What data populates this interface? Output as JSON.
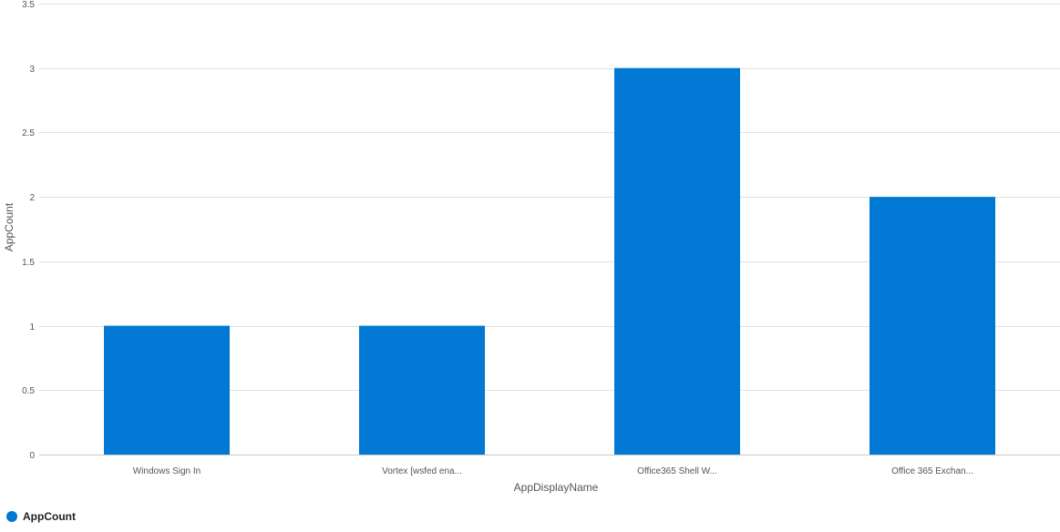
{
  "chart_data": {
    "type": "bar",
    "categories": [
      "Windows Sign In",
      "Vortex [wsfed ena...",
      "Office365 Shell W...",
      "Office 365 Exchan..."
    ],
    "series": [
      {
        "name": "AppCount",
        "values": [
          1,
          1,
          3,
          2
        ]
      }
    ],
    "xlabel": "AppDisplayName",
    "ylabel": "AppCount",
    "ylim": [
      0,
      3.5
    ],
    "yticks": [
      "0",
      "0.5",
      "1",
      "1.5",
      "2",
      "2.5",
      "3",
      "3.5"
    ],
    "grid": true,
    "legend_position": "bottom-left",
    "colors": {
      "bar": "#0078d4",
      "grid": "#e1e1e1",
      "axis": "#c8c8c8"
    }
  },
  "legend": {
    "label": "AppCount"
  }
}
